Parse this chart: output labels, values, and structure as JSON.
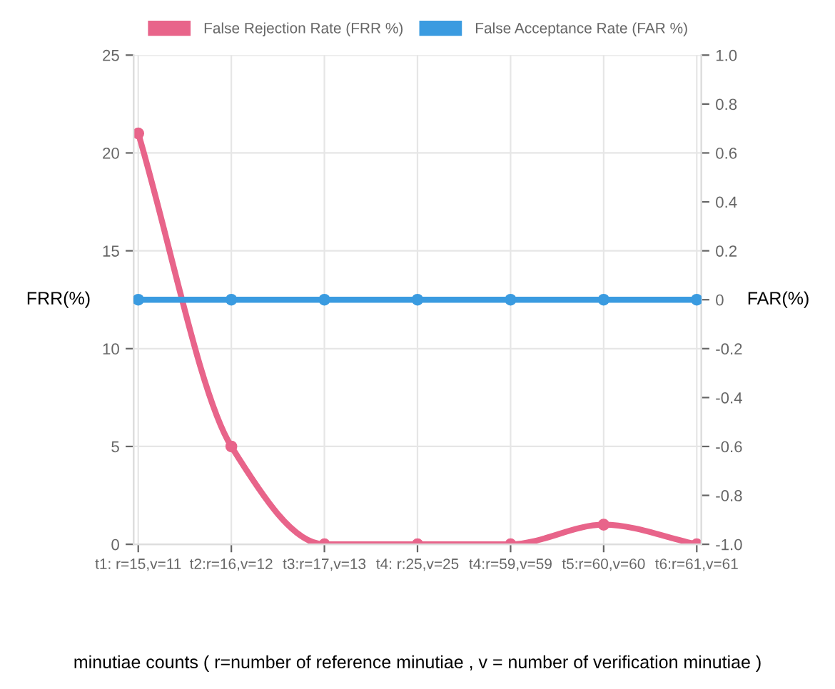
{
  "chart_data": {
    "type": "line",
    "categories": [
      "t1: r=15,v=11",
      "t2:r=16,v=12",
      "t3:r=17,v=13",
      "t4: r:25,v=25",
      "t4:r=59,v=59",
      "t5:r=60,v=60",
      "t6:r=61,v=61"
    ],
    "series": [
      {
        "name": "False Rejection Rate (FRR %)",
        "color": "#e8648a",
        "values": [
          21,
          5,
          0,
          0,
          0,
          1,
          0
        ]
      },
      {
        "name": "False Acceptance Rate (FAR %)",
        "color": "#3a9be0",
        "values": [
          0,
          0,
          0,
          0,
          0,
          0,
          0
        ],
        "axis": "y2"
      }
    ],
    "xlabel": "minutiae counts ( r=number of reference minutiae , v = number of verification minutiae )",
    "ylabel": "FRR(%)",
    "y2label": "FAR(%)",
    "ylim": [
      0,
      25
    ],
    "yticks": [
      0,
      5,
      10,
      15,
      20,
      25
    ],
    "y2lim": [
      -1,
      1
    ],
    "y2ticks": [
      {
        "value": -1,
        "label": "-1.0"
      },
      {
        "value": -0.8,
        "label": "-0.8"
      },
      {
        "value": -0.6,
        "label": "-0.6"
      },
      {
        "value": -0.4,
        "label": "-0.4"
      },
      {
        "value": -0.2,
        "label": "-0.2"
      },
      {
        "value": 0,
        "label": "0"
      },
      {
        "value": 0.2,
        "label": "0.2"
      },
      {
        "value": 0.4,
        "label": "0.4"
      },
      {
        "value": 0.6,
        "label": "0.6"
      },
      {
        "value": 0.8,
        "label": "0.8"
      },
      {
        "value": 1,
        "label": "1.0"
      }
    ],
    "grid": true,
    "legend": "top",
    "marker": "circle",
    "line_style": "solid"
  }
}
